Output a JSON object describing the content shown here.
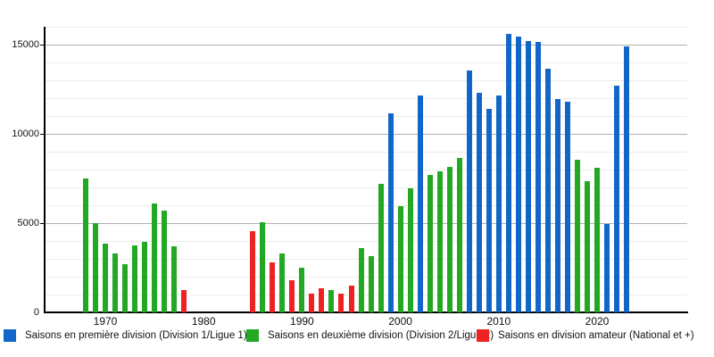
{
  "axes": {
    "y_tick_labels": [
      "0",
      "5000",
      "10000",
      "15000"
    ],
    "x_tick_labels": [
      "1970",
      "1980",
      "1990",
      "2000",
      "2010",
      "2020"
    ]
  },
  "legend": {
    "items": [
      {
        "label": "Saisons en première division (Division 1/Ligue 1)",
        "color": "#1266c8"
      },
      {
        "label": "Saisons en deuxième division (Division 2/Ligue 2)",
        "color": "#22a822"
      },
      {
        "label": "Saisons en division amateur (National et +)",
        "color": "#ee2222"
      }
    ]
  },
  "chart_data": {
    "type": "bar",
    "title": "",
    "xlabel": "",
    "ylabel": "",
    "ylim": [
      0,
      16000
    ],
    "xlim": [
      1966,
      2029
    ],
    "grid": "minor every 1000, major every 5000",
    "legend_position": "bottom",
    "series": [
      {
        "name": "Saisons en première division (Division 1/Ligue 1)",
        "color": "#1266c8",
        "points": [
          {
            "year": 1999,
            "value": 11150
          },
          {
            "year": 2002,
            "value": 12150
          },
          {
            "year": 2007,
            "value": 13550
          },
          {
            "year": 2008,
            "value": 12300
          },
          {
            "year": 2009,
            "value": 11400
          },
          {
            "year": 2010,
            "value": 12150
          },
          {
            "year": 2011,
            "value": 15600
          },
          {
            "year": 2012,
            "value": 15450
          },
          {
            "year": 2013,
            "value": 15200
          },
          {
            "year": 2014,
            "value": 15150
          },
          {
            "year": 2015,
            "value": 13650
          },
          {
            "year": 2016,
            "value": 11950
          },
          {
            "year": 2017,
            "value": 11800
          },
          {
            "year": 2021,
            "value": 4950
          },
          {
            "year": 2022,
            "value": 12700
          },
          {
            "year": 2023,
            "value": 14900
          }
        ]
      },
      {
        "name": "Saisons en deuxième division (Division 2/Ligue 2)",
        "color": "#22a822",
        "points": [
          {
            "year": 1968,
            "value": 7500
          },
          {
            "year": 1969,
            "value": 5000
          },
          {
            "year": 1970,
            "value": 3850
          },
          {
            "year": 1971,
            "value": 3300
          },
          {
            "year": 1972,
            "value": 2700
          },
          {
            "year": 1973,
            "value": 3750
          },
          {
            "year": 1974,
            "value": 3950
          },
          {
            "year": 1975,
            "value": 6100
          },
          {
            "year": 1976,
            "value": 5700
          },
          {
            "year": 1977,
            "value": 3700
          },
          {
            "year": 1986,
            "value": 5050
          },
          {
            "year": 1988,
            "value": 3300
          },
          {
            "year": 1990,
            "value": 2500
          },
          {
            "year": 1993,
            "value": 1250
          },
          {
            "year": 1996,
            "value": 3600
          },
          {
            "year": 1997,
            "value": 3150
          },
          {
            "year": 1998,
            "value": 7200
          },
          {
            "year": 2000,
            "value": 5950
          },
          {
            "year": 2001,
            "value": 6950
          },
          {
            "year": 2003,
            "value": 7700
          },
          {
            "year": 2004,
            "value": 7900
          },
          {
            "year": 2005,
            "value": 8150
          },
          {
            "year": 2006,
            "value": 8650
          },
          {
            "year": 2018,
            "value": 8550
          },
          {
            "year": 2019,
            "value": 7350
          },
          {
            "year": 2020,
            "value": 8100
          }
        ]
      },
      {
        "name": "Saisons en division amateur (National et +)",
        "color": "#ee2222",
        "points": [
          {
            "year": 1978,
            "value": 1250
          },
          {
            "year": 1985,
            "value": 4550
          },
          {
            "year": 1987,
            "value": 2800
          },
          {
            "year": 1989,
            "value": 1800
          },
          {
            "year": 1991,
            "value": 1050
          },
          {
            "year": 1992,
            "value": 1350
          },
          {
            "year": 1994,
            "value": 1050
          },
          {
            "year": 1995,
            "value": 1500
          }
        ]
      }
    ]
  }
}
